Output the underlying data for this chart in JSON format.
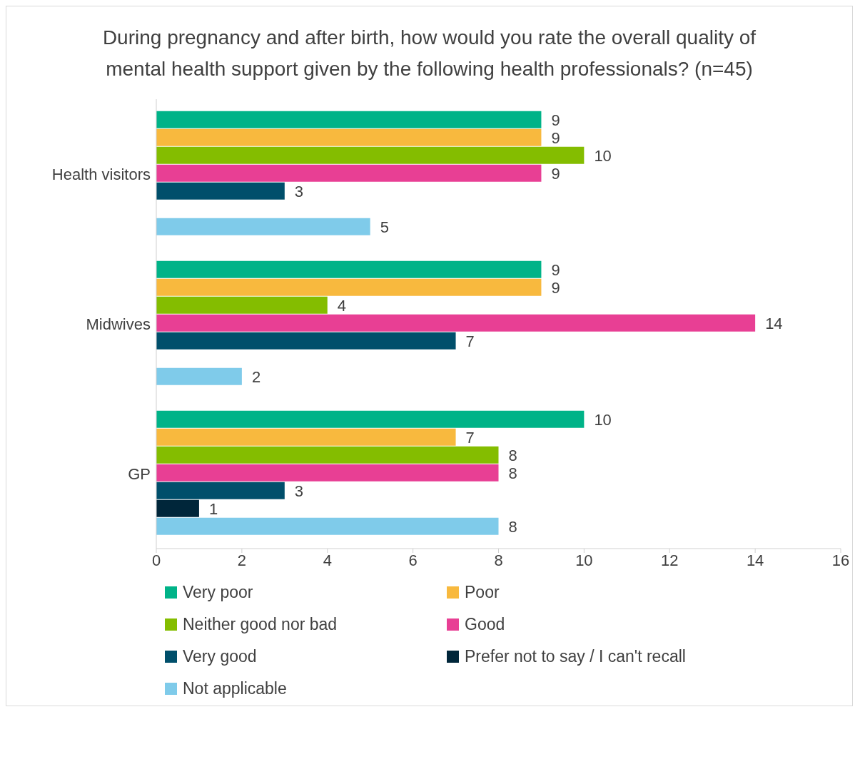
{
  "chart_data": {
    "type": "bar",
    "orientation": "horizontal",
    "title": "During pregnancy and after birth, how would you rate the overall quality of mental health support given by the following health professionals? (n=45)",
    "categories": [
      "Health visitors",
      "Midwives",
      "GP"
    ],
    "series": [
      {
        "name": "Very poor",
        "color": "#00b388",
        "values": [
          9,
          9,
          10
        ]
      },
      {
        "name": "Poor",
        "color": "#f8b93e",
        "values": [
          9,
          9,
          7
        ]
      },
      {
        "name": "Neither good nor bad",
        "color": "#84bd00",
        "values": [
          10,
          4,
          8
        ]
      },
      {
        "name": "Good",
        "color": "#e83f94",
        "values": [
          9,
          14,
          8
        ]
      },
      {
        "name": "Very good",
        "color": "#004f6b",
        "values": [
          3,
          7,
          3
        ]
      },
      {
        "name": "Prefer not to say / I can't recall",
        "color": "#00263a",
        "values": [
          null,
          null,
          1
        ]
      },
      {
        "name": "Not applicable",
        "color": "#7fcbea",
        "values": [
          5,
          2,
          8
        ]
      }
    ],
    "xlim": [
      0,
      16
    ],
    "xticks": [
      0,
      2,
      4,
      6,
      8,
      10,
      12,
      14,
      16
    ],
    "data_labels": true,
    "grid": false,
    "legend": "bottom"
  }
}
